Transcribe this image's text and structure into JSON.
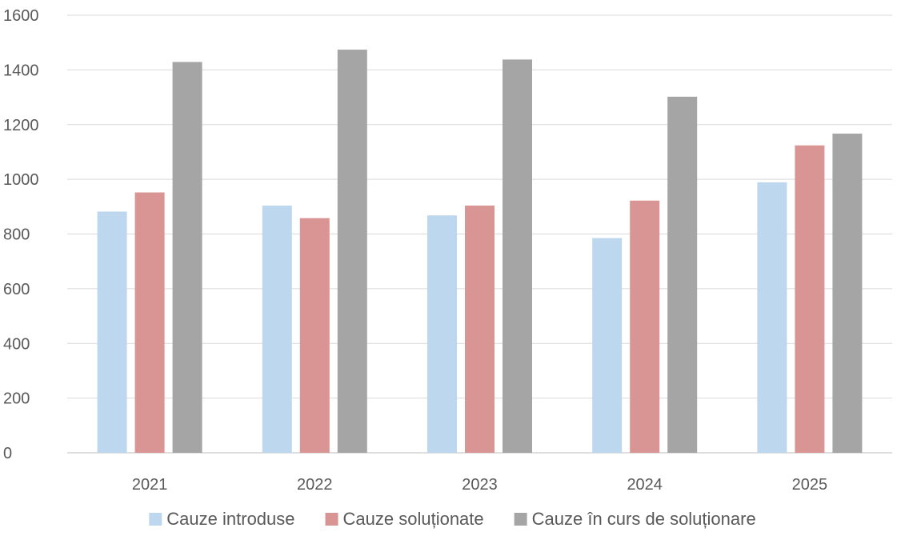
{
  "chart_data": {
    "type": "bar",
    "title": "",
    "xlabel": "",
    "ylabel": "",
    "categories": [
      "2021",
      "2022",
      "2023",
      "2024",
      "2025"
    ],
    "series": [
      {
        "name": "Cauze introduse",
        "color": "#bdd7ee",
        "values": [
          882,
          904,
          868,
          785,
          989
        ]
      },
      {
        "name": "Cauze soluționate",
        "color": "#d99594",
        "values": [
          952,
          858,
          904,
          922,
          1124
        ]
      },
      {
        "name": "Cauze în curs de soluționare",
        "color": "#a5a5a5",
        "values": [
          1429,
          1474,
          1438,
          1302,
          1167
        ]
      }
    ],
    "ylim": [
      0,
      1600
    ],
    "yticks": [
      0,
      200,
      400,
      600,
      800,
      1000,
      1200,
      1400,
      1600
    ],
    "grid": true,
    "legend": "bottom"
  }
}
